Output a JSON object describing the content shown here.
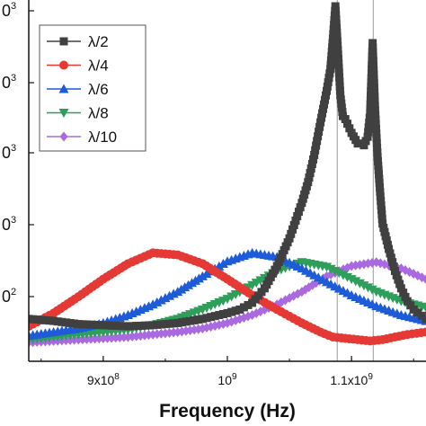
{
  "chart_data": {
    "type": "line",
    "xlabel": "Frequency (Hz)",
    "x_ticks": [
      {
        "value": 900000000,
        "mantissa": "9x10",
        "exp": "8"
      },
      {
        "value": 1000000000,
        "mantissa": "10",
        "exp": "9"
      },
      {
        "value": 1100000000,
        "mantissa": "1.1x10",
        "exp": "9"
      }
    ],
    "y_tick_labels": [
      {
        "base": "0",
        "exp": "3"
      },
      {
        "base": "0",
        "exp": "3"
      },
      {
        "base": "0",
        "exp": "3"
      },
      {
        "base": "0",
        "exp": "3"
      },
      {
        "base": "0",
        "exp": "2"
      }
    ],
    "xlim": [
      840000000,
      1160000000
    ],
    "y_scale": "log",
    "ylim": [
      40,
      6000
    ],
    "legend_position": "top-left",
    "series": [
      {
        "name": "λ/2",
        "color": "#404040",
        "marker": "square",
        "x": [
          840000000,
          860000000,
          880000000,
          900000000,
          920000000,
          940000000,
          960000000,
          980000000,
          1000000000,
          1010000000,
          1020000000,
          1030000000,
          1040000000,
          1050000000,
          1060000000,
          1065000000,
          1070000000,
          1075000000,
          1080000000,
          1083000000,
          1085000000,
          1087000000,
          1089000000,
          1091000000,
          1093000000,
          1095000000,
          1100000000,
          1105000000,
          1110000000,
          1113000000,
          1115000000,
          1117000000,
          1119000000,
          1121000000,
          1123000000,
          1125000000,
          1130000000,
          1135000000,
          1140000000,
          1145000000,
          1150000000,
          1160000000
        ],
        "y": [
          72,
          70,
          67,
          66,
          65,
          66,
          68,
          72,
          78,
          82,
          90,
          110,
          150,
          220,
          360,
          480,
          700,
          1100,
          1700,
          2300,
          3500,
          5500,
          3000,
          1600,
          1200,
          1150,
          950,
          820,
          800,
          900,
          1250,
          3300,
          1300,
          680,
          420,
          270,
          190,
          140,
          110,
          92,
          82,
          72
        ]
      },
      {
        "name": "λ/4",
        "color": "#e53935",
        "marker": "circle",
        "x": [
          840000000,
          860000000,
          880000000,
          900000000,
          920000000,
          940000000,
          960000000,
          980000000,
          1000000000,
          1020000000,
          1040000000,
          1060000000,
          1075000000,
          1085000000,
          1095000000,
          1105000000,
          1115000000,
          1125000000,
          1135000000,
          1145000000,
          1160000000
        ],
        "y": [
          65,
          78,
          98,
          125,
          155,
          180,
          175,
          155,
          125,
          100,
          82,
          68,
          60,
          56,
          55,
          54,
          53,
          54,
          56,
          58,
          60
        ]
      },
      {
        "name": "λ/6",
        "color": "#1e5bd6",
        "marker": "triangle-up",
        "x": [
          840000000,
          860000000,
          880000000,
          900000000,
          920000000,
          940000000,
          960000000,
          980000000,
          1000000000,
          1020000000,
          1040000000,
          1060000000,
          1080000000,
          1100000000,
          1120000000,
          1140000000,
          1160000000
        ],
        "y": [
          57,
          60,
          63,
          68,
          76,
          88,
          105,
          130,
          160,
          180,
          170,
          145,
          120,
          100,
          86,
          76,
          70
        ]
      },
      {
        "name": "λ/8",
        "color": "#2e9e5b",
        "marker": "triangle-down",
        "x": [
          840000000,
          860000000,
          880000000,
          900000000,
          920000000,
          940000000,
          960000000,
          980000000,
          1000000000,
          1020000000,
          1040000000,
          1060000000,
          1080000000,
          1100000000,
          1120000000,
          1140000000,
          1160000000
        ],
        "y": [
          54,
          56,
          58,
          60,
          62,
          66,
          72,
          82,
          95,
          115,
          140,
          158,
          148,
          125,
          105,
          92,
          84
        ]
      },
      {
        "name": "λ/10",
        "color": "#a96ae0",
        "marker": "diamond",
        "x": [
          840000000,
          860000000,
          880000000,
          900000000,
          920000000,
          940000000,
          960000000,
          980000000,
          1000000000,
          1020000000,
          1040000000,
          1060000000,
          1080000000,
          1100000000,
          1120000000,
          1140000000,
          1160000000
        ],
        "y": [
          52,
          53,
          54,
          55,
          56,
          58,
          60,
          63,
          68,
          76,
          88,
          105,
          130,
          150,
          158,
          145,
          125
        ]
      }
    ]
  }
}
